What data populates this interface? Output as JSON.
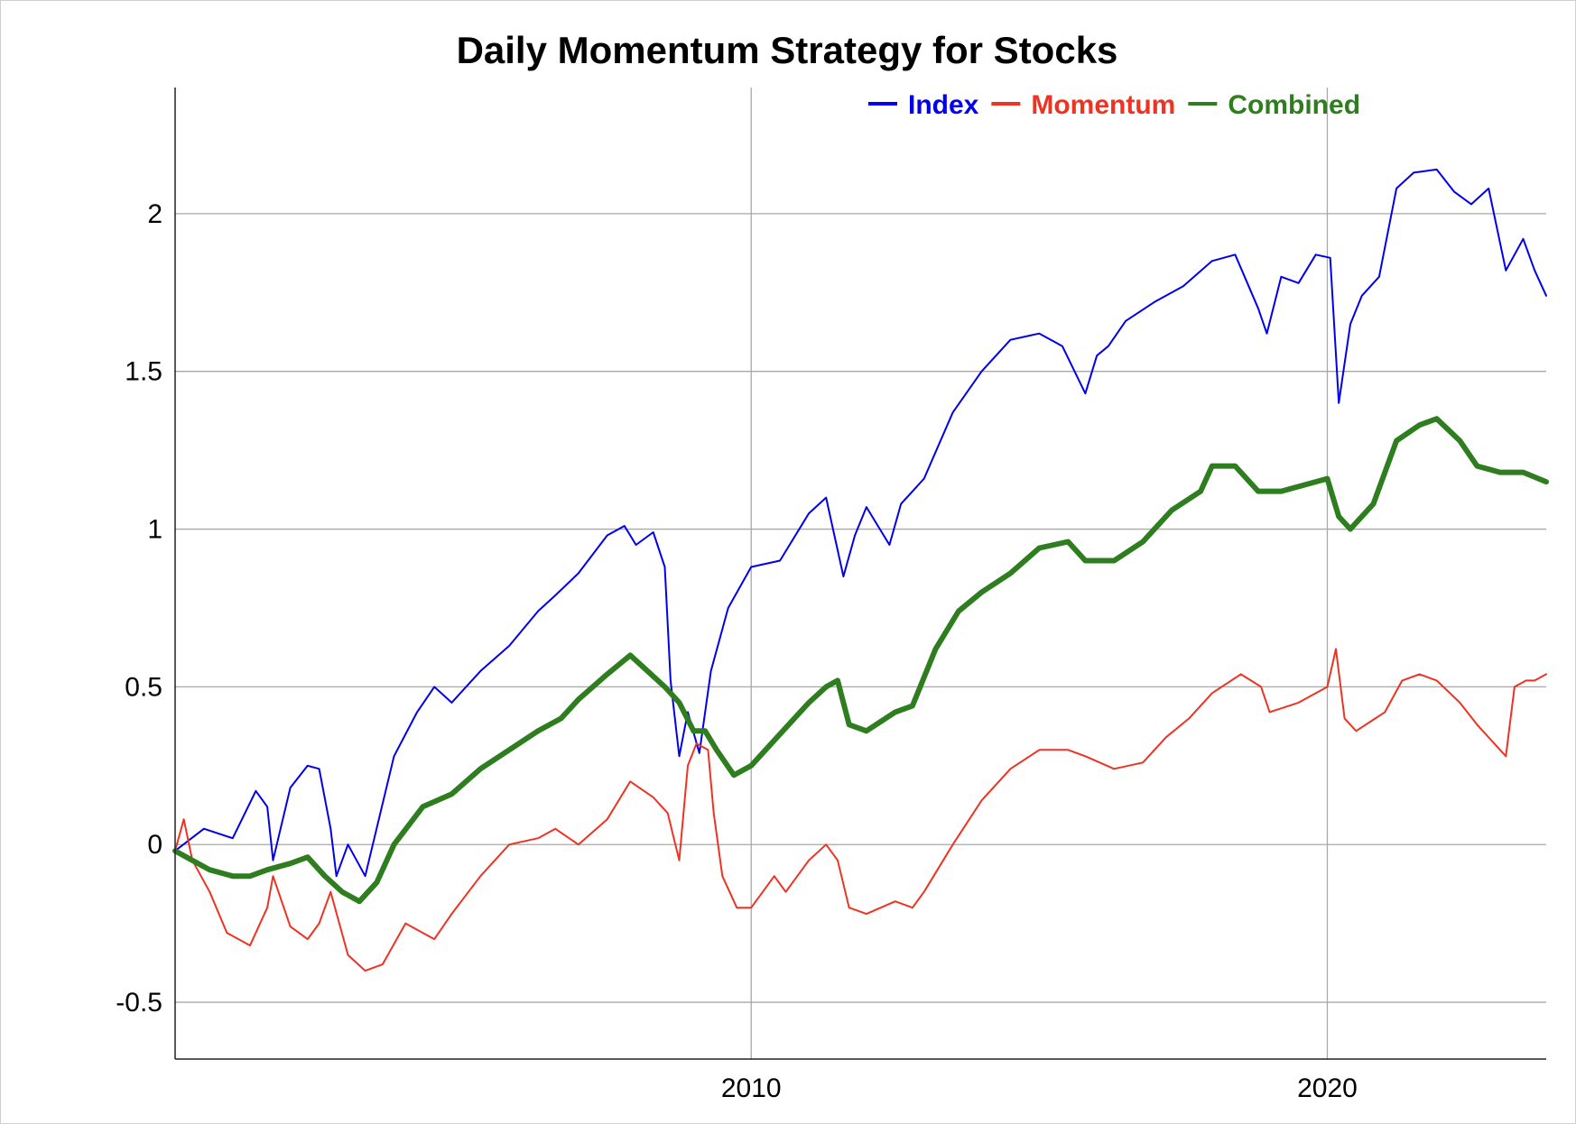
{
  "chart_data": {
    "type": "line",
    "title": "Daily Momentum Strategy for Stocks",
    "xlabel": "",
    "ylabel": "",
    "x_range": [
      2000.0,
      2023.8
    ],
    "ylim": [
      -0.68,
      2.4
    ],
    "x_ticks": [
      {
        "value": 2010,
        "label": "2010"
      },
      {
        "value": 2020,
        "label": "2020"
      }
    ],
    "y_ticks": [
      {
        "value": -0.5,
        "label": "-0.5"
      },
      {
        "value": 0,
        "label": "0"
      },
      {
        "value": 0.5,
        "label": "0.5"
      },
      {
        "value": 1,
        "label": "1"
      },
      {
        "value": 1.5,
        "label": "1.5"
      },
      {
        "value": 2,
        "label": "2"
      }
    ],
    "grid": true,
    "legend_position": "top-right",
    "series": [
      {
        "name": "Index",
        "color": "#0000ee",
        "x": [
          2000.0,
          2000.5,
          2001.0,
          2001.4,
          2001.6,
          2001.7,
          2002.0,
          2002.3,
          2002.5,
          2002.7,
          2002.8,
          2003.0,
          2003.3,
          2003.8,
          2004.2,
          2004.5,
          2004.8,
          2005.3,
          2005.8,
          2006.3,
          2006.6,
          2007.0,
          2007.5,
          2007.8,
          2008.0,
          2008.3,
          2008.5,
          2008.6,
          2008.75,
          2008.9,
          2009.1,
          2009.3,
          2009.6,
          2010.0,
          2010.5,
          2011.0,
          2011.3,
          2011.6,
          2011.8,
          2012.0,
          2012.4,
          2012.6,
          2013.0,
          2013.5,
          2014.0,
          2014.5,
          2015.0,
          2015.4,
          2015.8,
          2016.0,
          2016.2,
          2016.5,
          2017.0,
          2017.5,
          2018.0,
          2018.4,
          2018.8,
          2018.95,
          2019.2,
          2019.5,
          2019.8,
          2020.05,
          2020.2,
          2020.4,
          2020.6,
          2020.9,
          2021.2,
          2021.5,
          2021.9,
          2022.2,
          2022.5,
          2022.8,
          2023.1,
          2023.4,
          2023.6,
          2023.8
        ],
        "y": [
          -0.02,
          0.05,
          0.02,
          0.17,
          0.12,
          -0.05,
          0.18,
          0.25,
          0.24,
          0.05,
          -0.1,
          0.0,
          -0.1,
          0.28,
          0.42,
          0.5,
          0.45,
          0.55,
          0.63,
          0.74,
          0.79,
          0.86,
          0.98,
          1.01,
          0.95,
          0.99,
          0.88,
          0.52,
          0.28,
          0.42,
          0.29,
          0.55,
          0.75,
          0.88,
          0.9,
          1.05,
          1.1,
          0.85,
          0.98,
          1.07,
          0.95,
          1.08,
          1.16,
          1.37,
          1.5,
          1.6,
          1.62,
          1.58,
          1.43,
          1.55,
          1.58,
          1.66,
          1.72,
          1.77,
          1.85,
          1.87,
          1.7,
          1.62,
          1.8,
          1.78,
          1.87,
          1.86,
          1.4,
          1.65,
          1.74,
          1.8,
          2.08,
          2.13,
          2.14,
          2.07,
          2.03,
          2.08,
          1.82,
          1.92,
          1.82,
          1.74
        ]
      },
      {
        "name": "Momentum",
        "color": "#ee3322",
        "x": [
          2000.0,
          2000.15,
          2000.3,
          2000.6,
          2000.9,
          2001.3,
          2001.6,
          2001.7,
          2002.0,
          2002.3,
          2002.5,
          2002.7,
          2003.0,
          2003.3,
          2003.6,
          2004.0,
          2004.5,
          2004.8,
          2005.3,
          2005.8,
          2006.3,
          2006.6,
          2007.0,
          2007.5,
          2007.9,
          2008.3,
          2008.55,
          2008.75,
          2008.9,
          2009.05,
          2009.25,
          2009.35,
          2009.5,
          2009.75,
          2010.0,
          2010.4,
          2010.6,
          2011.0,
          2011.3,
          2011.5,
          2011.7,
          2012.0,
          2012.5,
          2012.8,
          2013.0,
          2013.5,
          2014.0,
          2014.5,
          2015.0,
          2015.5,
          2015.8,
          2016.3,
          2016.8,
          2017.2,
          2017.6,
          2018.0,
          2018.5,
          2018.85,
          2019.0,
          2019.5,
          2020.0,
          2020.15,
          2020.3,
          2020.5,
          2021.0,
          2021.3,
          2021.6,
          2021.9,
          2022.3,
          2022.6,
          2023.0,
          2023.1,
          2023.25,
          2023.45,
          2023.6,
          2023.8
        ],
        "y": [
          -0.02,
          0.08,
          -0.05,
          -0.15,
          -0.28,
          -0.32,
          -0.2,
          -0.1,
          -0.26,
          -0.3,
          -0.25,
          -0.15,
          -0.35,
          -0.4,
          -0.38,
          -0.25,
          -0.3,
          -0.22,
          -0.1,
          0.0,
          0.02,
          0.05,
          0.0,
          0.08,
          0.2,
          0.15,
          0.1,
          -0.05,
          0.25,
          0.32,
          0.3,
          0.1,
          -0.1,
          -0.2,
          -0.2,
          -0.1,
          -0.15,
          -0.05,
          0.0,
          -0.05,
          -0.2,
          -0.22,
          -0.18,
          -0.2,
          -0.15,
          0.0,
          0.14,
          0.24,
          0.3,
          0.3,
          0.28,
          0.24,
          0.26,
          0.34,
          0.4,
          0.48,
          0.54,
          0.5,
          0.42,
          0.45,
          0.5,
          0.62,
          0.4,
          0.36,
          0.42,
          0.52,
          0.54,
          0.52,
          0.45,
          0.38,
          0.3,
          0.28,
          0.5,
          0.52,
          0.52,
          0.54
        ]
      },
      {
        "name": "Combined",
        "color": "#2e7d1f",
        "x": [
          2000.0,
          2000.3,
          2000.6,
          2001.0,
          2001.3,
          2001.6,
          2002.0,
          2002.3,
          2002.6,
          2002.9,
          2003.2,
          2003.5,
          2003.8,
          2004.3,
          2004.8,
          2005.3,
          2005.8,
          2006.3,
          2006.7,
          2007.0,
          2007.5,
          2007.9,
          2008.2,
          2008.5,
          2008.75,
          2009.0,
          2009.2,
          2009.4,
          2009.7,
          2010.0,
          2010.5,
          2011.0,
          2011.3,
          2011.5,
          2011.7,
          2012.0,
          2012.5,
          2012.8,
          2013.2,
          2013.6,
          2014.0,
          2014.5,
          2015.0,
          2015.5,
          2015.8,
          2016.3,
          2016.8,
          2017.3,
          2017.8,
          2018.0,
          2018.4,
          2018.8,
          2019.2,
          2019.6,
          2020.0,
          2020.2,
          2020.4,
          2020.8,
          2021.2,
          2021.6,
          2021.9,
          2022.3,
          2022.6,
          2023.0,
          2023.4,
          2023.8
        ],
        "y": [
          -0.02,
          -0.05,
          -0.08,
          -0.1,
          -0.1,
          -0.08,
          -0.06,
          -0.04,
          -0.1,
          -0.15,
          -0.18,
          -0.12,
          0.0,
          0.12,
          0.16,
          0.24,
          0.3,
          0.36,
          0.4,
          0.46,
          0.54,
          0.6,
          0.55,
          0.5,
          0.45,
          0.36,
          0.36,
          0.3,
          0.22,
          0.25,
          0.35,
          0.45,
          0.5,
          0.52,
          0.38,
          0.36,
          0.42,
          0.44,
          0.62,
          0.74,
          0.8,
          0.86,
          0.94,
          0.96,
          0.9,
          0.9,
          0.96,
          1.06,
          1.12,
          1.2,
          1.2,
          1.12,
          1.12,
          1.14,
          1.16,
          1.04,
          1.0,
          1.08,
          1.28,
          1.33,
          1.35,
          1.28,
          1.2,
          1.18,
          1.18,
          1.15
        ]
      }
    ]
  }
}
